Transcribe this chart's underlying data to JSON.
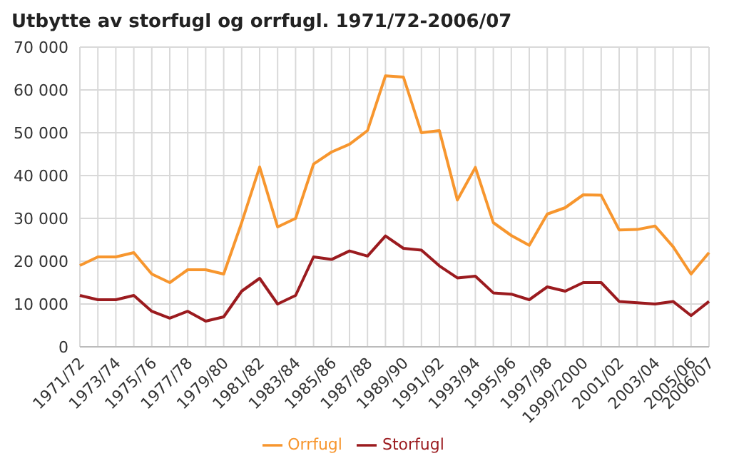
{
  "chart_data": {
    "type": "line",
    "title": "Utbytte av storfugl og orrfugl. 1971/72-2006/07",
    "categories": [
      "1971/72",
      null,
      "1973/74",
      null,
      "1975/76",
      null,
      "1977/78",
      null,
      "1979/80",
      null,
      "1981/82",
      null,
      "1983/84",
      null,
      "1985/86",
      null,
      "1987/88",
      null,
      "1989/90",
      null,
      "1991/92",
      null,
      "1993/94",
      null,
      "1995/96",
      null,
      "1997/98",
      null,
      "1999/2000",
      null,
      "2001/02",
      null,
      "2003/04",
      null,
      "2005/06",
      "2006/07"
    ],
    "series": [
      {
        "name": "Orrfugl",
        "color": "#f7962e",
        "values": [
          19000,
          21000,
          21000,
          22000,
          17000,
          15000,
          18000,
          18000,
          17000,
          29000,
          42000,
          28000,
          30000,
          42700,
          45500,
          47300,
          50500,
          63300,
          63000,
          50000,
          50500,
          34300,
          41900,
          29000,
          26000,
          23700,
          31000,
          32500,
          35500,
          35400,
          27300,
          27400,
          28200,
          23400,
          17000,
          22000
        ]
      },
      {
        "name": "Storfugl",
        "color": "#9b1b1f",
        "values": [
          12000,
          11000,
          11000,
          12000,
          8300,
          6700,
          8300,
          6000,
          7000,
          13000,
          16000,
          10000,
          12000,
          21000,
          20400,
          22400,
          21200,
          25900,
          23000,
          22600,
          18900,
          16100,
          16500,
          12600,
          12300,
          11000,
          14000,
          13000,
          15000,
          15000,
          10600,
          10300,
          10000,
          10600,
          7300,
          10600
        ]
      }
    ],
    "ylim": [
      0,
      70000
    ],
    "yticks": [
      0,
      {
        "value": 10000,
        "label": "10 000"
      },
      {
        "value": 20000,
        "label": "20 000"
      },
      {
        "value": 30000,
        "label": "30 000"
      },
      {
        "value": 40000,
        "label": "40 000"
      },
      {
        "value": 50000,
        "label": "50 000"
      },
      {
        "value": 60000,
        "label": "60 000"
      },
      {
        "value": 70000,
        "label": "70 000"
      }
    ],
    "grid": true,
    "legend": "bottom",
    "marker": "none",
    "line_style": "solid"
  }
}
